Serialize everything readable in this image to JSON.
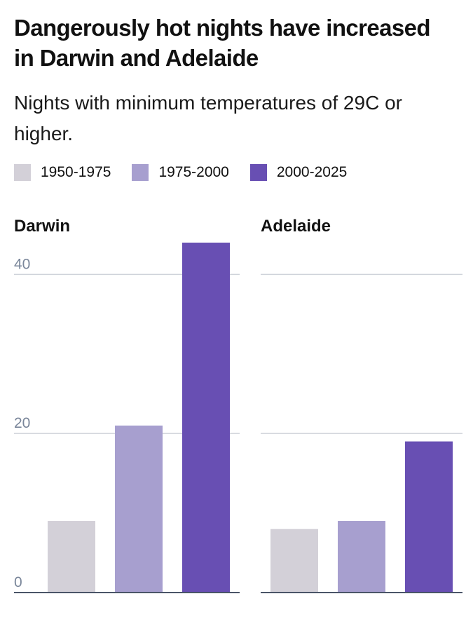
{
  "title": "Dangerously hot nights have increased in Darwin and Adelaide",
  "subtitle": "Nights with minimum temperatures of 29C or higher.",
  "legend": [
    {
      "label": "1950-1975",
      "color": "#d3d0d8"
    },
    {
      "label": "1975-2000",
      "color": "#a79fcf"
    },
    {
      "label": "2000-2025",
      "color": "#684fb3"
    }
  ],
  "chart_data": {
    "type": "bar",
    "categories": [
      "1950-1975",
      "1975-2000",
      "2000-2025"
    ],
    "ylim": [
      0,
      44
    ],
    "yticks": [
      0,
      20,
      40
    ],
    "grid": true,
    "legend_position": "top",
    "panels": [
      {
        "name": "Darwin",
        "values": [
          9,
          21,
          44
        ]
      },
      {
        "name": "Adelaide",
        "values": [
          8,
          9,
          19
        ]
      }
    ]
  }
}
